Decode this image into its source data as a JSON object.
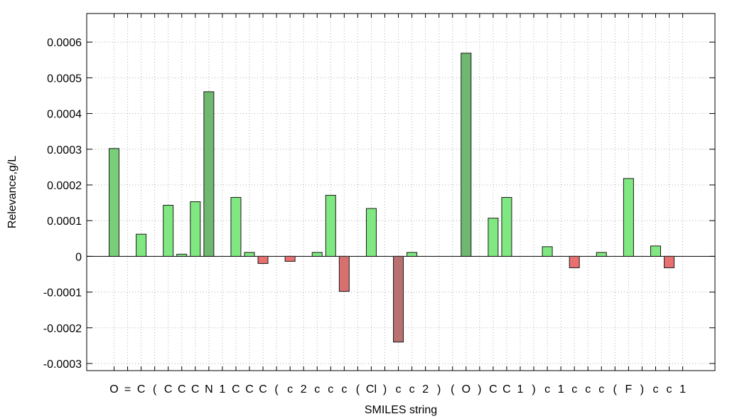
{
  "chart_data": {
    "type": "bar",
    "xlabel": "SMILES string",
    "ylabel": "Relevance,g/L",
    "ylim": [
      -0.00032,
      0.00068
    ],
    "yticks": [
      "0.0006",
      "0.0005",
      "0.0004",
      "0.0003",
      "0.0002",
      "0.0001",
      "0",
      "-0.0001",
      "-0.0002",
      "-0.0003"
    ],
    "ytick_values": [
      0.0006,
      0.0005,
      0.0004,
      0.0003,
      0.0002,
      0.0001,
      0,
      -0.0001,
      -0.0002,
      -0.0003
    ],
    "grid": true,
    "categories": [
      "O",
      "=",
      "C",
      "(",
      "C",
      "C",
      "C",
      "N",
      "1",
      "C",
      "C",
      "C",
      "(",
      "c",
      "2",
      "c",
      "c",
      "c",
      "(",
      "Cl",
      ")",
      "c",
      "c",
      "2",
      ")",
      "(",
      "O",
      ")",
      "C",
      "C",
      "1",
      ")",
      "c",
      "1",
      "c",
      "c",
      "c",
      "(",
      "F",
      ")",
      "c",
      "c",
      "1"
    ],
    "values": [
      0.000302,
      0,
      6.2e-05,
      0,
      0.000143,
      6e-06,
      0.000153,
      0.000461,
      0,
      0.000165,
      1.1e-05,
      -2e-05,
      0,
      -1.4e-05,
      0,
      1.1e-05,
      0.000171,
      -9.8e-05,
      0,
      0.000134,
      0,
      -0.00024,
      1.1e-05,
      0,
      0,
      0,
      0.000569,
      0,
      0.000107,
      0.000165,
      0,
      0,
      2.7e-05,
      0,
      -3.2e-05,
      0,
      1.1e-05,
      0,
      0.000218,
      0,
      2.9e-05,
      -3.2e-05,
      0
    ],
    "colors": {
      "positive": "#80e880",
      "positive_dark": "#6fb86f",
      "negative": "#e87070",
      "negative_dark": "#b87070",
      "grid": "#b0b0b0"
    }
  }
}
